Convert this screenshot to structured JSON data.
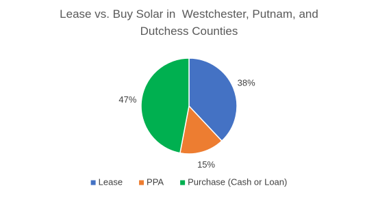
{
  "chart_data": {
    "type": "pie",
    "title": "Lease vs. Buy Solar in  Westchester, Putnam, and Dutchess Counties",
    "categories": [
      "Lease",
      "PPA",
      "Purchase (Cash or Loan)"
    ],
    "values": [
      38,
      15,
      47
    ],
    "value_labels": [
      "38%",
      "15%",
      "47%"
    ],
    "colors": [
      "#4472c4",
      "#ed7d31",
      "#00b050"
    ],
    "legend": "bottom"
  }
}
